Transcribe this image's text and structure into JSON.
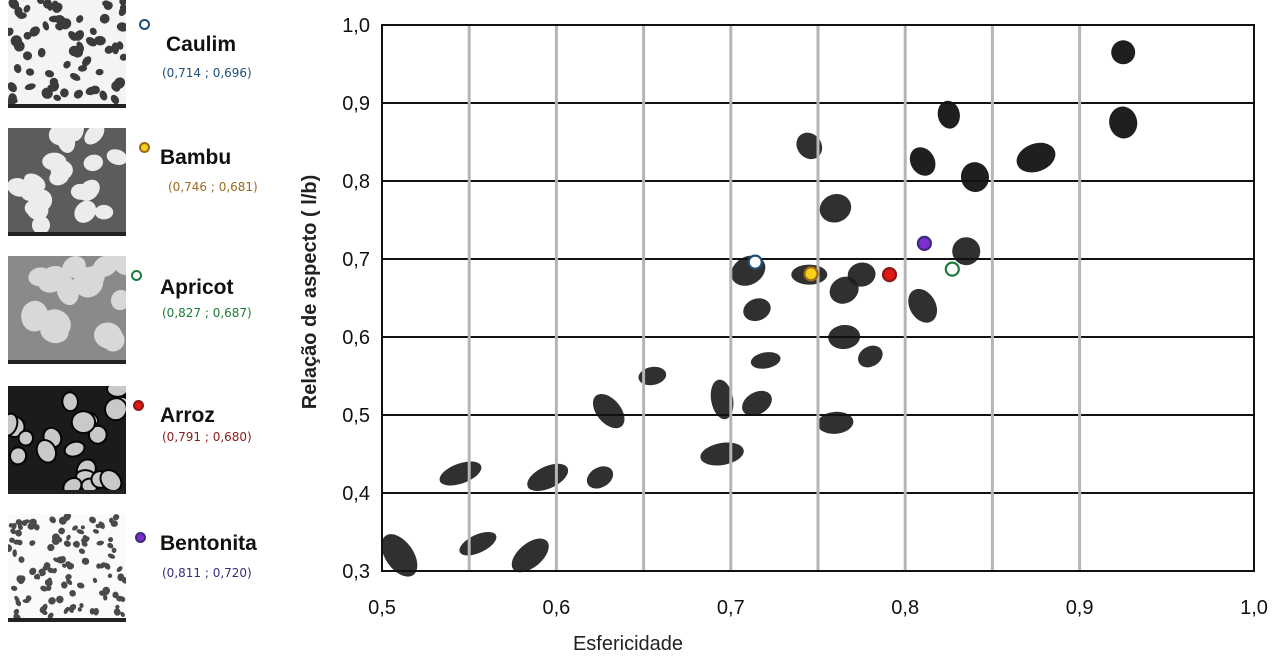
{
  "colors": {
    "caulim": "#1f4e79",
    "bambu": "#9c6a1a",
    "apricot": "#1e7a3a",
    "arroz": "#8b1a1a",
    "bentonita": "#3f2a7a",
    "marker_caulim": "#ffffff",
    "marker_bambu": "#f5d21a",
    "marker_apricot": "#ffffff",
    "marker_arroz": "#e01818",
    "marker_bentonita": "#7a2fd0"
  },
  "legend": {
    "items": [
      {
        "key": "caulim",
        "name": "Caulim",
        "coords": "(0,714 ; 0,696)"
      },
      {
        "key": "bambu",
        "name": "Bambu",
        "coords": "(0,746 ; 0,681)"
      },
      {
        "key": "apricot",
        "name": "Apricot",
        "coords": "(0,827 ; 0,687)"
      },
      {
        "key": "arroz",
        "name": "Arroz",
        "coords": "(0,791 ; 0,680)"
      },
      {
        "key": "bentonita",
        "name": "Bentonita",
        "coords": "(0,811 ; 0,720)"
      }
    ]
  },
  "chart_data": {
    "type": "scatter",
    "title": "",
    "xlabel": "Esfericidade",
    "ylabel": "Relação de aspecto ( l/b)",
    "xlim": [
      0.5,
      1.0
    ],
    "ylim": [
      0.3,
      1.0
    ],
    "xticks": [
      "0,5",
      "0,6",
      "0,7",
      "0,8",
      "0,9",
      "1,0"
    ],
    "yticks": [
      "0,3",
      "0,4",
      "0,5",
      "0,6",
      "0,7",
      "0,8",
      "0,9",
      "1,0"
    ],
    "grid": "on",
    "legend_placement": "left",
    "series": [
      {
        "name": "Caulim",
        "key": "caulim",
        "x": [
          0.714
        ],
        "y": [
          0.696
        ]
      },
      {
        "name": "Bambu",
        "key": "bambu",
        "x": [
          0.746
        ],
        "y": [
          0.681
        ]
      },
      {
        "name": "Apricot",
        "key": "apricot",
        "x": [
          0.827
        ],
        "y": [
          0.687
        ]
      },
      {
        "name": "Arroz",
        "key": "arroz",
        "x": [
          0.791
        ],
        "y": [
          0.68
        ]
      },
      {
        "name": "Bentonita",
        "key": "bentonita",
        "x": [
          0.811
        ],
        "y": [
          0.72
        ]
      }
    ]
  }
}
